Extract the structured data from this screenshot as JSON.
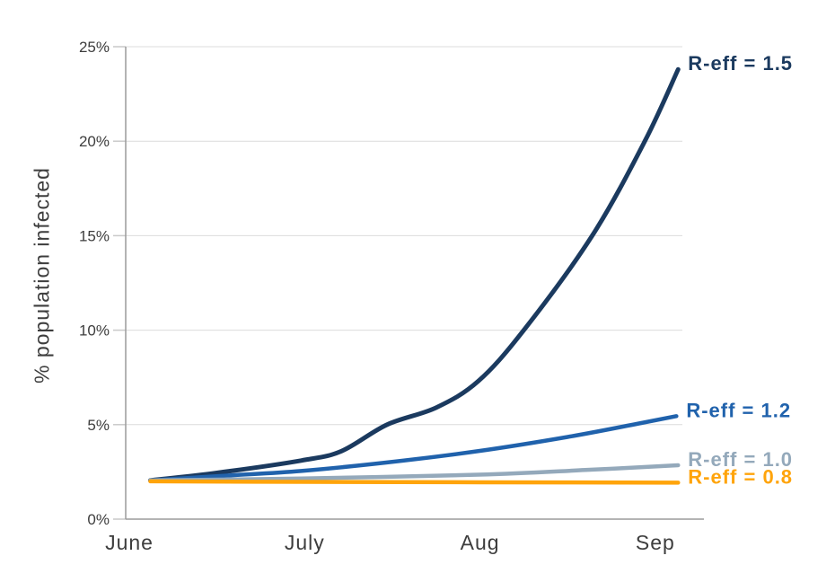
{
  "chart_data": {
    "type": "line",
    "title": "",
    "xlabel": "",
    "ylabel": "% population infected",
    "ylim": [
      0,
      25
    ],
    "xlim_months": [
      0,
      3.3
    ],
    "grid": "horizontal",
    "legend_position": "line-end-labels",
    "x_ticks": [
      {
        "label": "June",
        "month": 0
      },
      {
        "label": "July",
        "month": 1
      },
      {
        "label": "Aug",
        "month": 2
      },
      {
        "label": "Sep",
        "month": 3
      }
    ],
    "y_ticks": [
      {
        "label": "0%",
        "value": 0
      },
      {
        "label": "5%",
        "value": 5
      },
      {
        "label": "10%",
        "value": 10
      },
      {
        "label": "15%",
        "value": 15
      },
      {
        "label": "20%",
        "value": 20
      },
      {
        "label": "25%",
        "value": 25
      }
    ],
    "series": [
      {
        "name": "reff-1.5",
        "label": "R-eff = 1.5",
        "color": "#1b3a5f",
        "stroke_width": 5,
        "points": [
          [
            0.12,
            2.05
          ],
          [
            0.5,
            2.45
          ],
          [
            0.98,
            3.1
          ],
          [
            1.21,
            3.6
          ],
          [
            1.47,
            5.0
          ],
          [
            1.75,
            5.9
          ],
          [
            1.99,
            7.3
          ],
          [
            2.25,
            10.0
          ],
          [
            2.64,
            15.0
          ],
          [
            2.94,
            20.0
          ],
          [
            3.13,
            23.8
          ]
        ]
      },
      {
        "name": "reff-1.2",
        "label": "R-eff = 1.2",
        "color": "#2062ac",
        "stroke_width": 4.5,
        "points": [
          [
            0.12,
            2.05
          ],
          [
            0.55,
            2.3
          ],
          [
            0.98,
            2.55
          ],
          [
            1.47,
            3.0
          ],
          [
            1.99,
            3.6
          ],
          [
            2.5,
            4.35
          ],
          [
            2.9,
            5.05
          ],
          [
            3.12,
            5.45
          ]
        ]
      },
      {
        "name": "reff-1.0",
        "label": "R-eff = 1.0",
        "color": "#94a9bb",
        "stroke_width": 4.5,
        "points": [
          [
            0.12,
            2.05
          ],
          [
            0.98,
            2.15
          ],
          [
            1.99,
            2.35
          ],
          [
            2.6,
            2.6
          ],
          [
            3.13,
            2.85
          ]
        ]
      },
      {
        "name": "reff-0.8",
        "label": "R-eff = 0.8",
        "color": "#ffa40b",
        "stroke_width": 4.5,
        "points": [
          [
            0.12,
            2.0
          ],
          [
            1.0,
            1.97
          ],
          [
            2.0,
            1.95
          ],
          [
            3.13,
            1.93
          ]
        ]
      }
    ],
    "colors": {
      "axis": "#9b9b9b",
      "grid": "#dcdcdc",
      "tick": "#c9c9c9",
      "text": "#3d3d3d"
    }
  }
}
